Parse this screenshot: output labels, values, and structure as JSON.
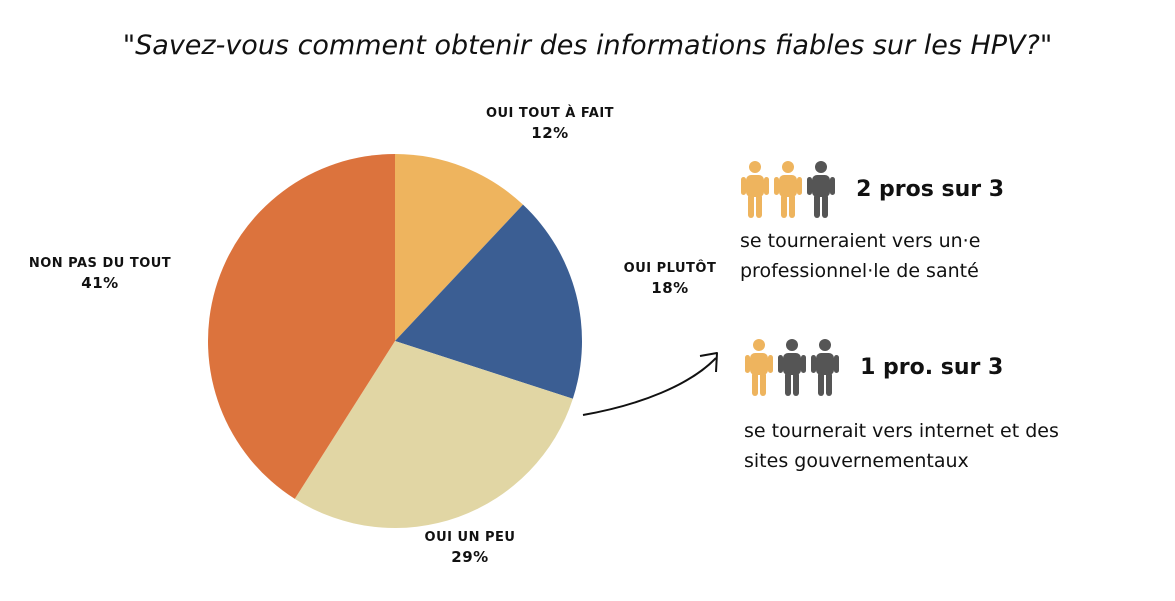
{
  "title": "\"Savez-vous comment obtenir des informations fiables sur les HPV?\"",
  "chart_data": {
    "type": "pie",
    "title": "\"Savez-vous comment obtenir des informations fiables sur les HPV?\"",
    "slices": [
      {
        "label": "Oui tout à fait",
        "value": 12,
        "pct_label": "12%",
        "color": "#EEB45E"
      },
      {
        "label": "Oui plutôt",
        "value": 18,
        "pct_label": "18%",
        "color": "#3B5E93"
      },
      {
        "label": "Oui un peu",
        "value": 29,
        "pct_label": "29%",
        "color": "#E1D6A4"
      },
      {
        "label": "Non pas du tout",
        "value": 41,
        "pct_label": "41%",
        "color": "#DC733D"
      }
    ],
    "start_angle": "top",
    "direction": "clockwise"
  },
  "stats": [
    {
      "headline": "2 pros sur 3",
      "description_lines": [
        "se tourneraient vers un·e",
        "professionnel·le de santé"
      ],
      "people": [
        "highlight",
        "highlight",
        "dark"
      ]
    },
    {
      "headline": "1 pro. sur 3",
      "description_lines": [
        "se tournerait vers internet et des",
        "sites gouvernementaux"
      ],
      "people": [
        "highlight",
        "dark",
        "dark"
      ]
    }
  ],
  "colors": {
    "highlight_person": "#EEB45E",
    "dark_person": "#555555",
    "arrow": "#111111"
  },
  "icons": {
    "person": "person-icon",
    "arrow": "curved-arrow-icon"
  }
}
